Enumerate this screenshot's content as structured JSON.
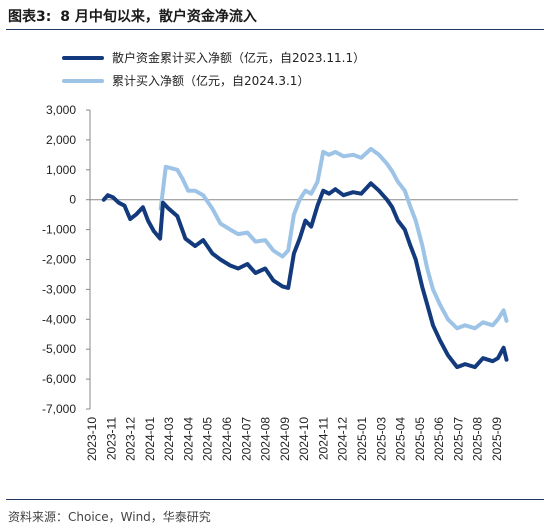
{
  "figure": {
    "label": "图表3:",
    "title": "8 月中旬以来，散户资金净流入",
    "source": "资料来源：Choice，Wind，华泰研究"
  },
  "colors": {
    "dark": "#123a7c",
    "light": "#9dc3e6",
    "axis": "#888888",
    "rule": "#1f3864"
  },
  "chart_data": {
    "type": "line",
    "ylim": [
      -7000,
      3000
    ],
    "yticks": [
      3000,
      2000,
      1000,
      0,
      -1000,
      -2000,
      -3000,
      -4000,
      -5000,
      -6000,
      -7000
    ],
    "ytick_labels": [
      "3,000",
      "2,000",
      "1,000",
      "0",
      "-1,000",
      "-2,000",
      "-3,000",
      "-4,000",
      "-5,000",
      "-6,000",
      "-7,000"
    ],
    "xticks": [
      "2023-10",
      "2023-11",
      "2023-12",
      "2024-01",
      "2024-03",
      "2024-04",
      "2024-05",
      "2024-06",
      "2024-07",
      "2024-08",
      "2024-09",
      "2024-10",
      "2024-11",
      "2024-12",
      "2025-01",
      "2025-03",
      "2025-04",
      "2025-05",
      "2025-06",
      "2025-07",
      "2025-08",
      "2025-09"
    ],
    "legend_position": "top-left",
    "series": [
      {
        "name": "散户资金累计买入净额（亿元，自2023.11.1）",
        "color": "#123a7c",
        "points": [
          [
            "2023-10-25",
            0
          ],
          [
            "2023-11-01",
            150
          ],
          [
            "2023-11-10",
            80
          ],
          [
            "2023-11-20",
            -100
          ],
          [
            "2023-11-30",
            -200
          ],
          [
            "2023-12-10",
            -650
          ],
          [
            "2023-12-20",
            -500
          ],
          [
            "2024-01-01",
            -250
          ],
          [
            "2024-01-10",
            -700
          ],
          [
            "2024-01-20",
            -1050
          ],
          [
            "2024-01-31",
            -1300
          ],
          [
            "2024-02-05",
            -100
          ],
          [
            "2024-02-15",
            -300
          ],
          [
            "2024-03-01",
            -550
          ],
          [
            "2024-03-15",
            -1300
          ],
          [
            "2024-04-01",
            -1550
          ],
          [
            "2024-04-15",
            -1350
          ],
          [
            "2024-05-01",
            -1800
          ],
          [
            "2024-05-15",
            -2000
          ],
          [
            "2024-06-01",
            -2200
          ],
          [
            "2024-06-15",
            -2300
          ],
          [
            "2024-07-01",
            -2150
          ],
          [
            "2024-07-15",
            -2450
          ],
          [
            "2024-08-01",
            -2300
          ],
          [
            "2024-08-15",
            -2700
          ],
          [
            "2024-08-31",
            -2900
          ],
          [
            "2024-09-10",
            -2950
          ],
          [
            "2024-09-20",
            -1800
          ],
          [
            "2024-09-30",
            -1300
          ],
          [
            "2024-10-10",
            -700
          ],
          [
            "2024-10-20",
            -900
          ],
          [
            "2024-10-31",
            -200
          ],
          [
            "2024-11-10",
            300
          ],
          [
            "2024-11-20",
            200
          ],
          [
            "2024-12-01",
            350
          ],
          [
            "2024-12-15",
            150
          ],
          [
            "2025-01-01",
            250
          ],
          [
            "2025-01-15",
            200
          ],
          [
            "2025-02-01",
            550
          ],
          [
            "2025-02-15",
            300
          ],
          [
            "2025-03-01",
            0
          ],
          [
            "2025-03-10",
            -250
          ],
          [
            "2025-03-20",
            -700
          ],
          [
            "2025-04-01",
            -1000
          ],
          [
            "2025-04-10",
            -1500
          ],
          [
            "2025-04-20",
            -2000
          ],
          [
            "2025-05-01",
            -2900
          ],
          [
            "2025-05-10",
            -3500
          ],
          [
            "2025-05-20",
            -4200
          ],
          [
            "2025-06-01",
            -4700
          ],
          [
            "2025-06-15",
            -5200
          ],
          [
            "2025-07-01",
            -5600
          ],
          [
            "2025-07-15",
            -5500
          ],
          [
            "2025-08-01",
            -5600
          ],
          [
            "2025-08-15",
            -5300
          ],
          [
            "2025-09-01",
            -5400
          ],
          [
            "2025-09-10",
            -5300
          ],
          [
            "2025-09-20",
            -4950
          ],
          [
            "2025-09-25",
            -5350
          ]
        ]
      },
      {
        "name": "累计买入净额（亿元，自2024.3.1）",
        "color": "#9dc3e6",
        "points": [
          [
            "2024-02-01",
            -300
          ],
          [
            "2024-02-10",
            1100
          ],
          [
            "2024-02-20",
            1050
          ],
          [
            "2024-03-01",
            1000
          ],
          [
            "2024-03-10",
            700
          ],
          [
            "2024-03-20",
            300
          ],
          [
            "2024-04-01",
            300
          ],
          [
            "2024-04-15",
            150
          ],
          [
            "2024-05-01",
            -300
          ],
          [
            "2024-05-15",
            -800
          ],
          [
            "2024-06-01",
            -1000
          ],
          [
            "2024-06-15",
            -1150
          ],
          [
            "2024-07-01",
            -1100
          ],
          [
            "2024-07-15",
            -1400
          ],
          [
            "2024-08-01",
            -1350
          ],
          [
            "2024-08-15",
            -1700
          ],
          [
            "2024-08-31",
            -1900
          ],
          [
            "2024-09-10",
            -1700
          ],
          [
            "2024-09-20",
            -500
          ],
          [
            "2024-09-30",
            0
          ],
          [
            "2024-10-10",
            300
          ],
          [
            "2024-10-20",
            200
          ],
          [
            "2024-10-31",
            600
          ],
          [
            "2024-11-10",
            1600
          ],
          [
            "2024-11-20",
            1500
          ],
          [
            "2024-12-01",
            1600
          ],
          [
            "2024-12-15",
            1450
          ],
          [
            "2025-01-01",
            1500
          ],
          [
            "2025-01-15",
            1400
          ],
          [
            "2025-02-01",
            1700
          ],
          [
            "2025-02-15",
            1500
          ],
          [
            "2025-03-01",
            1200
          ],
          [
            "2025-03-10",
            950
          ],
          [
            "2025-03-20",
            600
          ],
          [
            "2025-04-01",
            300
          ],
          [
            "2025-04-10",
            -200
          ],
          [
            "2025-04-20",
            -700
          ],
          [
            "2025-05-01",
            -1500
          ],
          [
            "2025-05-10",
            -2300
          ],
          [
            "2025-05-20",
            -3000
          ],
          [
            "2025-06-01",
            -3500
          ],
          [
            "2025-06-15",
            -4000
          ],
          [
            "2025-07-01",
            -4300
          ],
          [
            "2025-07-15",
            -4200
          ],
          [
            "2025-08-01",
            -4300
          ],
          [
            "2025-08-15",
            -4100
          ],
          [
            "2025-09-01",
            -4200
          ],
          [
            "2025-09-10",
            -4000
          ],
          [
            "2025-09-20",
            -3700
          ],
          [
            "2025-09-25",
            -4050
          ]
        ]
      }
    ]
  }
}
